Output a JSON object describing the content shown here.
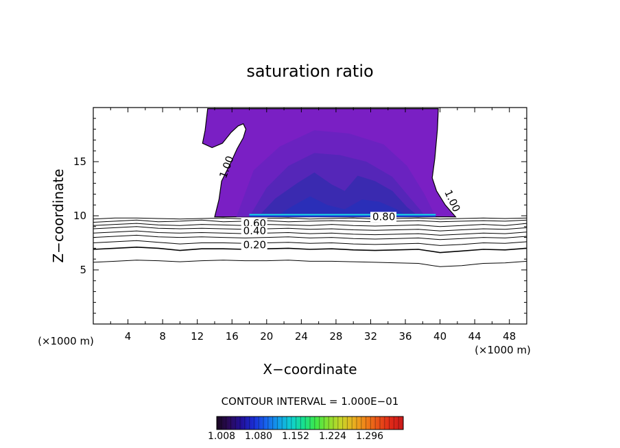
{
  "chart_data": {
    "type": "contour",
    "title": "saturation ratio",
    "xlabel": "X−coordinate",
    "ylabel": "Z−coordinate",
    "x_unit_left": "(×1000 m)",
    "x_unit_right": "(×1000 m)",
    "xlim": [
      0,
      50
    ],
    "ylim": [
      0,
      20
    ],
    "x_ticks": [
      4,
      8,
      12,
      16,
      20,
      24,
      28,
      32,
      36,
      40,
      44,
      48
    ],
    "x_tick_labels": [
      "4",
      "8",
      "12",
      "16",
      "20",
      "24",
      "28",
      "32",
      "36",
      "40",
      "44",
      "48"
    ],
    "y_ticks": [
      5,
      10,
      15
    ],
    "y_tick_labels": [
      "5",
      "10",
      "15"
    ],
    "contour_interval_text": "CONTOUR INTERVAL = 1.000E−01",
    "contour_labels": [
      {
        "text": "1.00",
        "x": 15.3,
        "z": 13.4,
        "rotate": -70
      },
      {
        "text": "1.00",
        "x": 40.5,
        "z": 12.2,
        "rotate": 65
      },
      {
        "text": "0.80",
        "x": 32.2,
        "z": 9.6,
        "rotate": 0
      },
      {
        "text": "0.60",
        "x": 17.3,
        "z": 9.0,
        "rotate": 0
      },
      {
        "text": "0.40",
        "x": 17.3,
        "z": 8.3,
        "rotate": 0
      },
      {
        "text": "0.20",
        "x": 17.3,
        "z": 7.0,
        "rotate": 0
      }
    ],
    "filled_region": {
      "level": 1.0,
      "base_z": 9.9,
      "x_range": [
        14.0,
        41.8
      ],
      "inner_levels": [
        1.008,
        1.05,
        1.1,
        1.15,
        1.2
      ]
    },
    "contour_lines": [
      {
        "level": 0.9,
        "z": [
          9.7,
          9.8,
          9.8,
          9.75,
          9.7,
          9.75,
          9.8,
          9.7,
          9.75,
          9.8,
          9.7,
          9.75,
          9.8,
          9.7,
          9.75,
          9.8,
          9.7,
          9.75,
          9.8,
          9.75,
          9.8
        ]
      },
      {
        "level": 0.8,
        "z": [
          9.4,
          9.5,
          9.6,
          9.45,
          9.5,
          9.6,
          9.45,
          9.5,
          9.55,
          9.45,
          9.5,
          9.55,
          9.5,
          9.45,
          9.5,
          9.55,
          9.45,
          9.5,
          9.55,
          9.5,
          9.6
        ]
      },
      {
        "level": 0.7,
        "z": [
          9.1,
          9.2,
          9.3,
          9.15,
          9.1,
          9.2,
          9.15,
          9.1,
          9.2,
          9.15,
          9.1,
          9.2,
          9.1,
          9.05,
          9.1,
          9.15,
          9.0,
          9.1,
          9.2,
          9.1,
          9.3
        ]
      },
      {
        "level": 0.6,
        "z": [
          8.8,
          8.9,
          9.0,
          8.85,
          8.8,
          8.85,
          8.8,
          8.75,
          8.8,
          8.85,
          8.75,
          8.8,
          8.7,
          8.65,
          8.7,
          8.75,
          8.6,
          8.7,
          8.8,
          8.75,
          8.9
        ]
      },
      {
        "level": 0.5,
        "z": [
          8.4,
          8.5,
          8.6,
          8.45,
          8.4,
          8.45,
          8.4,
          8.35,
          8.4,
          8.45,
          8.35,
          8.4,
          8.3,
          8.25,
          8.3,
          8.35,
          8.2,
          8.3,
          8.4,
          8.35,
          8.5
        ]
      },
      {
        "level": 0.4,
        "z": [
          8.0,
          8.1,
          8.2,
          8.05,
          8.0,
          8.05,
          8.0,
          7.95,
          8.0,
          8.05,
          7.95,
          8.0,
          7.9,
          7.85,
          7.9,
          7.95,
          7.8,
          7.9,
          8.0,
          7.95,
          8.1
        ]
      },
      {
        "level": 0.3,
        "z": [
          7.5,
          7.6,
          7.7,
          7.55,
          7.4,
          7.5,
          7.5,
          7.45,
          7.5,
          7.55,
          7.45,
          7.5,
          7.4,
          7.35,
          7.4,
          7.45,
          7.25,
          7.35,
          7.5,
          7.45,
          7.6
        ]
      },
      {
        "level": 0.2,
        "z": [
          6.9,
          7.0,
          7.1,
          7.0,
          6.8,
          6.95,
          6.95,
          6.9,
          6.95,
          7.0,
          6.9,
          6.95,
          6.85,
          6.8,
          6.85,
          6.9,
          6.6,
          6.75,
          6.9,
          6.85,
          7.0
        ]
      },
      {
        "level": 0.1,
        "z": [
          5.7,
          5.8,
          5.9,
          5.85,
          5.75,
          5.85,
          5.9,
          5.85,
          5.85,
          5.9,
          5.8,
          5.8,
          5.75,
          5.7,
          5.65,
          5.6,
          5.3,
          5.4,
          5.6,
          5.65,
          5.8
        ]
      }
    ],
    "colorbar": {
      "tick_labels": [
        "1.008",
        "1.080",
        "1.152",
        "1.224",
        "1.296"
      ],
      "colors": [
        "#1a0820",
        "#2a0a5a",
        "#22109a",
        "#1a2ed6",
        "#1766ee",
        "#12a0e8",
        "#10d0d0",
        "#18e08c",
        "#40e848",
        "#8ae030",
        "#c8d428",
        "#e8b020",
        "#f08018",
        "#e85018",
        "#e02818",
        "#c81a1a"
      ]
    }
  },
  "colors": {
    "fill_outer": "#7a1fc4",
    "fill_mid": "#6a22c0",
    "fill_inner": "#5526b8",
    "fill_core": "#3a2ab0",
    "base_band": "#20d8e0",
    "base_band_dark": "#1040e0"
  }
}
